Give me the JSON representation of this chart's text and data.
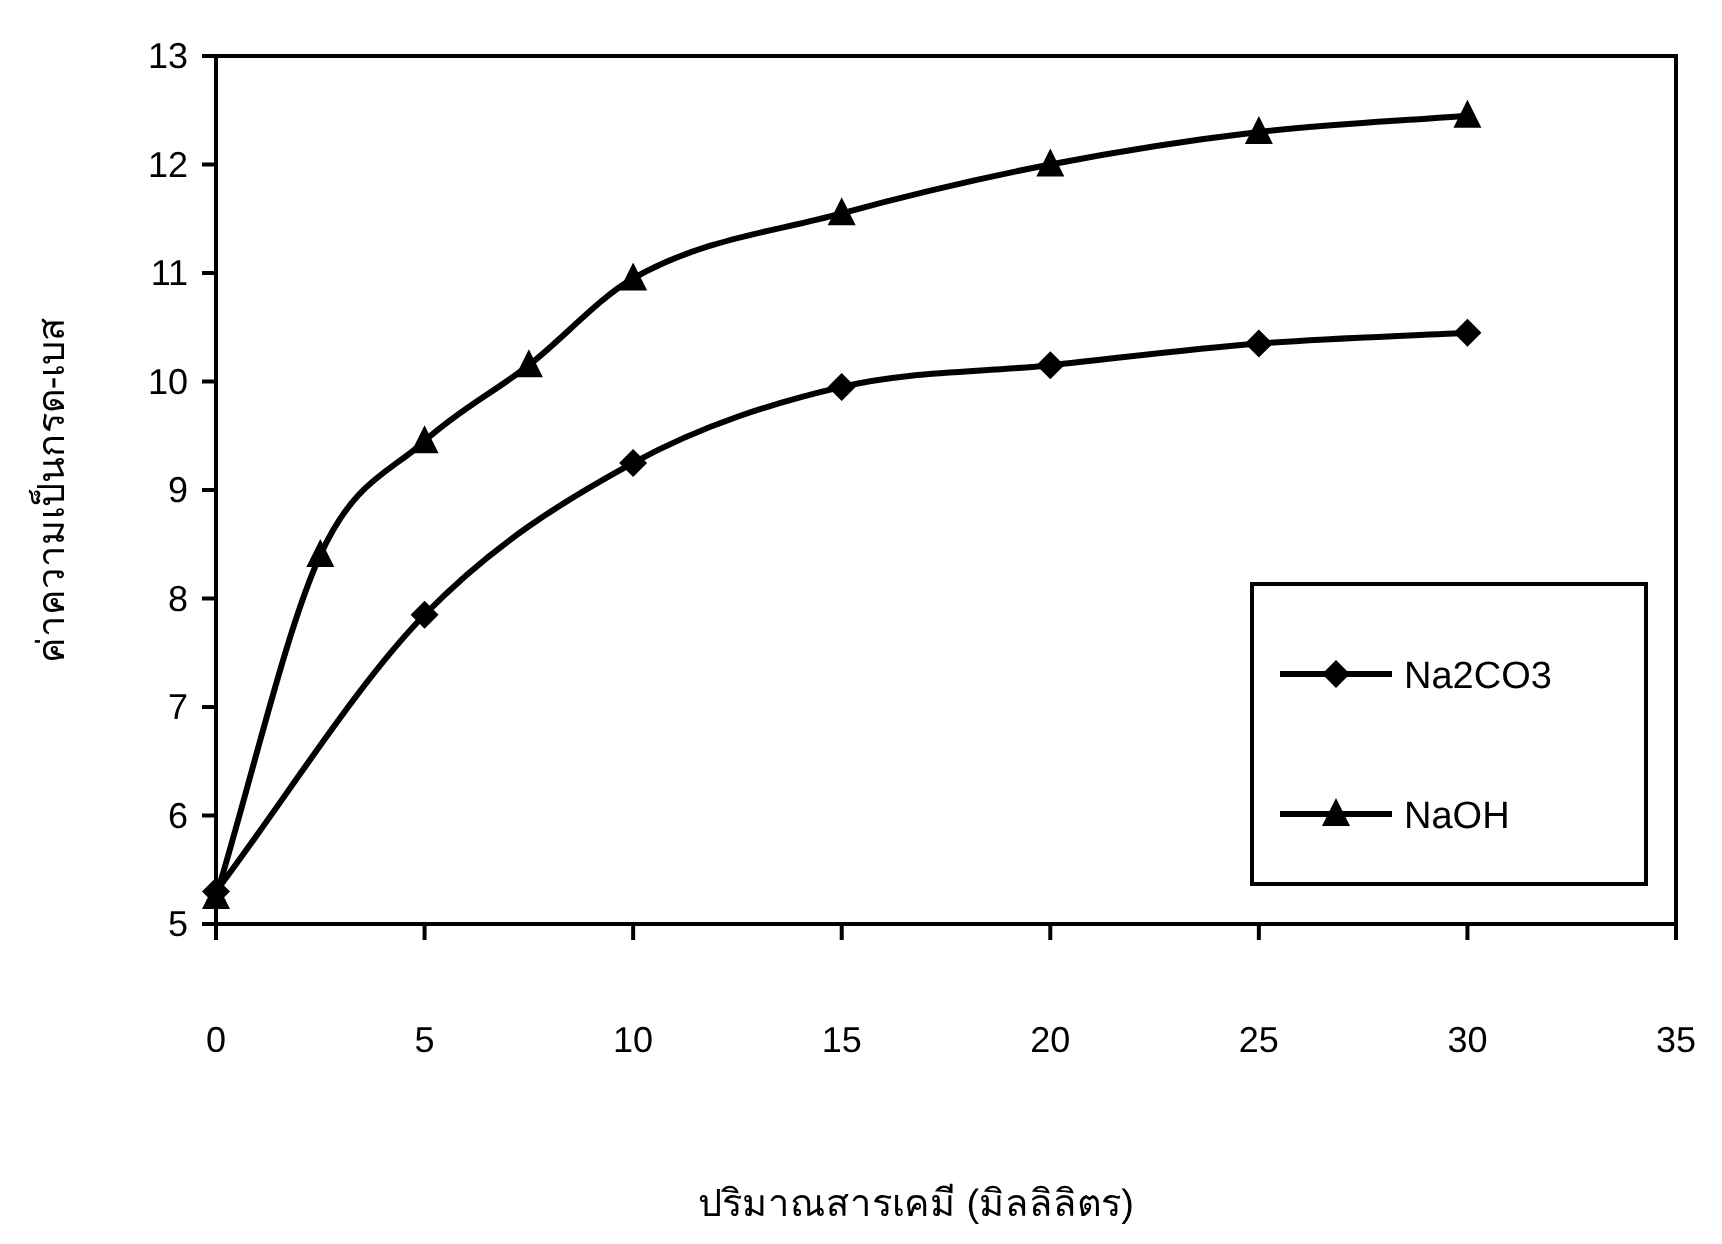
{
  "chart_data": {
    "type": "line",
    "xlabel": "ปริมาณสารเคมี (มิลลิลิตร)",
    "ylabel": "ค่าความเป็นกรด-เบส",
    "xlim": [
      0,
      35
    ],
    "xticks": [
      0,
      5,
      10,
      15,
      20,
      25,
      30,
      35
    ],
    "ylim": [
      5,
      13
    ],
    "yticks": [
      5,
      6,
      7,
      8,
      9,
      10,
      11,
      12,
      13
    ],
    "grid": false,
    "legend": "bottom right",
    "series": [
      {
        "name": "Na2CO3",
        "color": "#000000",
        "marker": "diamond",
        "x": [
          0,
          5,
          10,
          15,
          20,
          25,
          30
        ],
        "values": [
          5.3,
          7.85,
          9.25,
          9.95,
          10.15,
          10.35,
          10.45
        ]
      },
      {
        "name": "NaOH",
        "color": "#000000",
        "marker": "triangle",
        "x": [
          0,
          2.5,
          5,
          7.5,
          10,
          15,
          20,
          25,
          30
        ],
        "values": [
          5.25,
          8.4,
          9.45,
          10.15,
          10.95,
          11.55,
          12.0,
          12.3,
          12.45
        ]
      }
    ]
  }
}
